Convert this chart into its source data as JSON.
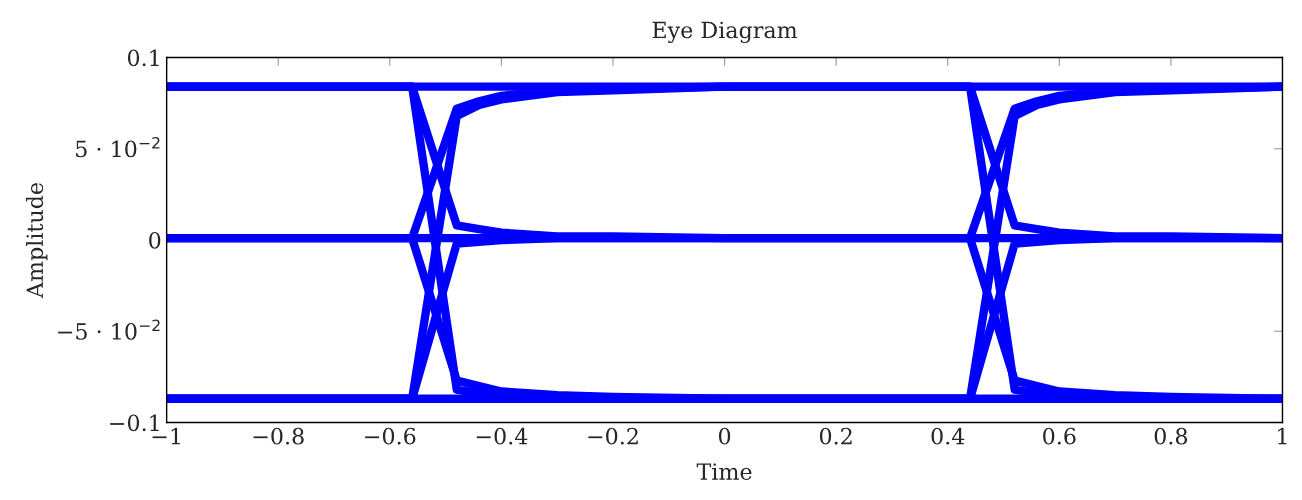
{
  "chart_data": {
    "type": "line",
    "title": "Eye Diagram",
    "xlabel": "Time",
    "ylabel": "Amplitude",
    "x": [
      -1,
      -0.56,
      -0.48,
      -0.44,
      -0.4,
      -0.3,
      -0.2,
      0,
      0.44,
      0.52,
      0.56,
      0.6,
      0.7,
      0.8,
      1
    ],
    "xlim": [
      -1,
      1
    ],
    "xticks": [
      -1,
      -0.8,
      -0.6,
      -0.4,
      -0.2,
      0,
      0.2,
      0.4,
      0.6,
      0.8,
      1
    ],
    "ylim": [
      -0.1,
      0.1
    ],
    "yticks": [
      -0.1,
      {
        "value": -0.05,
        "label": "−5 · 10$^{−2}$"
      },
      0,
      {
        "value": 0.05,
        "label": "5 · 10$^{−2}$"
      },
      0.1
    ],
    "grid": false,
    "legend": false,
    "marker": "none",
    "line_style": "solid",
    "series": [
      {
        "color": "#0000ff",
        "values": [
          0.084,
          0.084,
          0.084,
          0.084,
          0.084,
          0.084,
          0.084,
          0.084,
          0.084,
          0.084,
          0.084,
          0.084,
          0.084,
          0.084,
          0.084
        ]
      },
      {
        "color": "#0000ff",
        "values": [
          0.084,
          0.084,
          0.008,
          0.006,
          0.004,
          0.002,
          0.002,
          0.001,
          0.001,
          0.001,
          0.001,
          0.001,
          0.001,
          0.001,
          0.001
        ]
      },
      {
        "color": "#0000ff",
        "values": [
          0.084,
          0.084,
          -0.082,
          -0.084,
          -0.085,
          -0.086,
          -0.087,
          -0.087,
          -0.087,
          -0.087,
          -0.087,
          -0.087,
          -0.087,
          -0.087,
          -0.087
        ]
      },
      {
        "color": "#0000ff",
        "values": [
          0.001,
          0.001,
          0.072,
          0.076,
          0.079,
          0.082,
          0.083,
          0.084,
          0.084,
          0.008,
          0.006,
          0.004,
          0.002,
          0.002,
          0.001
        ]
      },
      {
        "color": "#0000ff",
        "values": [
          0.001,
          0.001,
          0.001,
          0.001,
          0.001,
          0.001,
          0.001,
          0.001,
          0.001,
          -0.077,
          -0.08,
          -0.083,
          -0.085,
          -0.086,
          -0.087
        ]
      },
      {
        "color": "#0000ff",
        "values": [
          0.001,
          0.001,
          -0.077,
          -0.08,
          -0.083,
          -0.085,
          -0.086,
          -0.087,
          -0.087,
          0.068,
          0.074,
          0.077,
          0.081,
          0.082,
          0.084
        ]
      },
      {
        "color": "#0000ff",
        "values": [
          -0.087,
          -0.087,
          0.068,
          0.074,
          0.077,
          0.081,
          0.082,
          0.084,
          0.084,
          -0.082,
          -0.084,
          -0.085,
          -0.086,
          -0.087,
          -0.087
        ]
      },
      {
        "color": "#0000ff",
        "values": [
          -0.087,
          -0.087,
          -0.002,
          -0.001,
          0,
          0.001,
          0.001,
          0.001,
          0.001,
          0.072,
          0.076,
          0.079,
          0.082,
          0.083,
          0.084
        ]
      },
      {
        "color": "#0000ff",
        "values": [
          -0.087,
          -0.087,
          -0.087,
          -0.087,
          -0.087,
          -0.087,
          -0.087,
          -0.087,
          -0.087,
          -0.002,
          -0.001,
          0,
          0.001,
          0.001,
          0.001
        ]
      }
    ]
  }
}
